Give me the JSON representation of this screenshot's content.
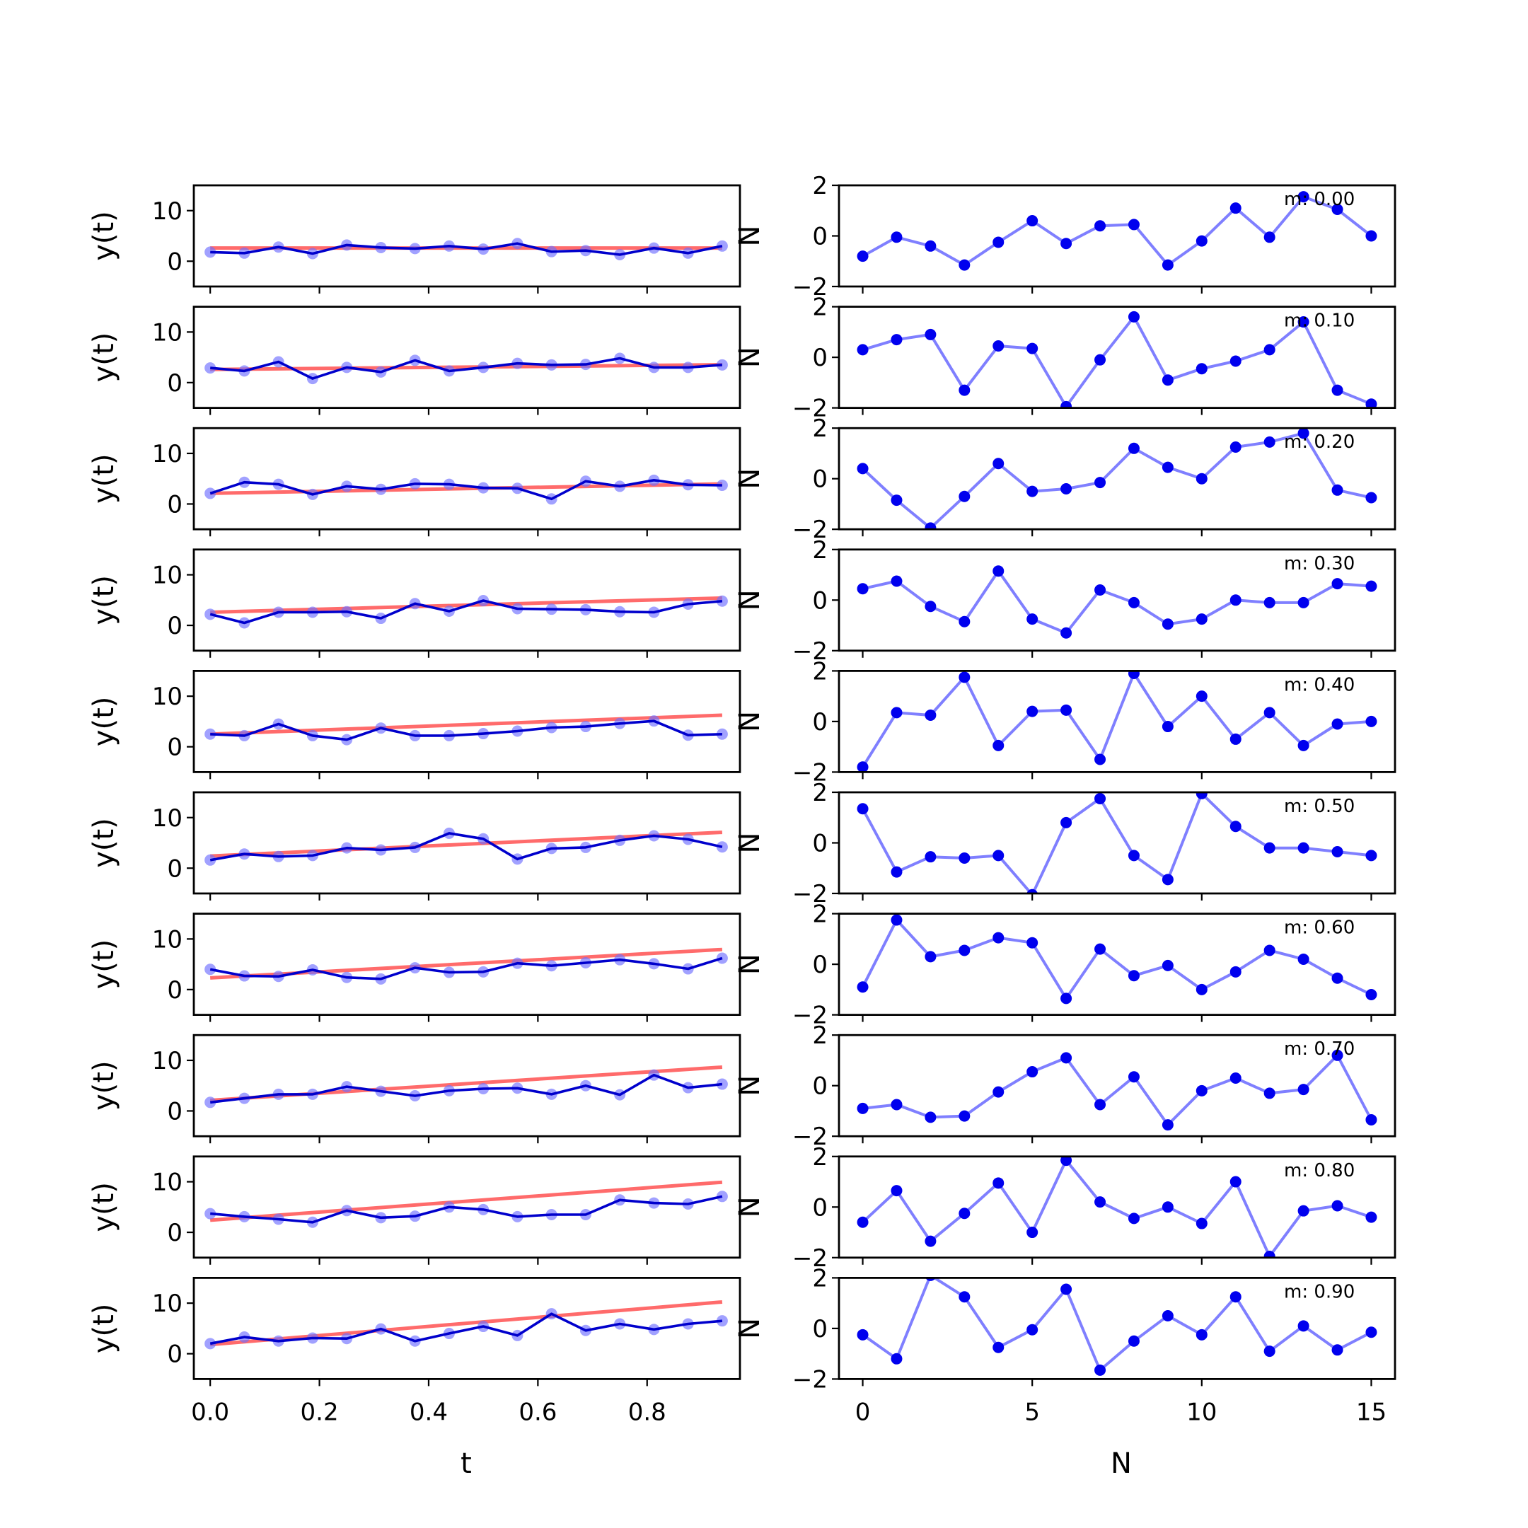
{
  "chart_data": {
    "type": "line",
    "n": [
      0,
      1,
      2,
      3,
      4,
      5,
      6,
      7,
      8,
      9,
      10,
      11,
      12,
      13,
      14,
      15
    ],
    "t": [
      0.0,
      0.0625,
      0.125,
      0.1875,
      0.25,
      0.3125,
      0.375,
      0.4375,
      0.5,
      0.5625,
      0.625,
      0.6875,
      0.75,
      0.8125,
      0.875,
      0.9375
    ],
    "left_axes": {
      "xlabel": "t",
      "ylabel": "y(t)",
      "xlim": [
        -0.03,
        0.97
      ],
      "ylim": [
        -5,
        15
      ],
      "xticks": [
        0.0,
        0.2,
        0.4,
        0.6,
        0.8
      ],
      "xtick_labels": [
        "0.0",
        "0.2",
        "0.4",
        "0.6",
        "0.8"
      ],
      "yticks": [
        0,
        10
      ],
      "ytick_labels": [
        "0",
        "10"
      ],
      "side_glyph": "N"
    },
    "right_axes": {
      "xlabel": "N",
      "xlim": [
        -0.7,
        15.7
      ],
      "ylim": [
        -2,
        2
      ],
      "xticks": [
        0,
        5,
        10,
        15
      ],
      "xtick_labels": [
        "0",
        "5",
        "10",
        "15"
      ],
      "yticks": [
        2,
        0,
        -2
      ],
      "ytick_labels": [
        "2",
        "0",
        "−2"
      ]
    },
    "colors": {
      "fit_line": "#ff6b6b",
      "data_line": "#0000cc",
      "data_points": "#6f6fff",
      "noise_line": "#7f7fff",
      "noise_points": "#0000ee"
    },
    "rows": [
      {
        "annotation": "m: 0.00",
        "slope": 0.0,
        "intercept": 2.6,
        "y": [
          1.8,
          1.6,
          2.8,
          1.5,
          3.2,
          2.7,
          2.5,
          3.0,
          2.4,
          3.5,
          1.9,
          2.1,
          1.3,
          2.6,
          1.6,
          3.0
        ],
        "noise": [
          -0.8,
          -0.05,
          -0.4,
          -1.15,
          -0.25,
          0.6,
          -0.3,
          0.4,
          0.45,
          -1.15,
          -0.2,
          1.1,
          -0.05,
          1.55,
          1.05,
          0.0
        ]
      },
      {
        "annotation": "m: 0.10",
        "slope": 1.0,
        "intercept": 2.6,
        "y": [
          2.9,
          2.3,
          4.1,
          0.8,
          3.0,
          2.1,
          4.4,
          2.3,
          3.0,
          3.8,
          3.5,
          3.6,
          4.8,
          3.0,
          3.0,
          3.5
        ],
        "noise": [
          0.3,
          0.7,
          0.9,
          -1.3,
          0.45,
          0.35,
          -1.95,
          -0.1,
          1.6,
          -0.9,
          -0.45,
          -0.15,
          0.3,
          1.4,
          -1.3,
          -1.85
        ]
      },
      {
        "annotation": "m: 0.20",
        "slope": 2.0,
        "intercept": 2.1,
        "y": [
          2.1,
          4.3,
          3.9,
          1.9,
          3.5,
          2.9,
          4.0,
          3.9,
          3.2,
          3.1,
          1.0,
          4.5,
          3.5,
          4.7,
          3.8,
          3.7
        ],
        "noise": [
          0.4,
          -0.85,
          -1.95,
          -0.7,
          0.6,
          -0.5,
          -0.4,
          -0.15,
          1.2,
          0.45,
          0.0,
          1.25,
          1.45,
          1.8,
          -0.45,
          -0.75
        ]
      },
      {
        "annotation": "m: 0.30",
        "slope": 3.0,
        "intercept": 2.6,
        "y": [
          2.2,
          0.5,
          2.6,
          2.6,
          2.7,
          1.4,
          4.3,
          2.8,
          4.9,
          3.3,
          3.2,
          3.1,
          2.7,
          2.6,
          4.2,
          4.8
        ],
        "noise": [
          0.45,
          0.75,
          -0.25,
          -0.85,
          1.15,
          -0.75,
          -1.3,
          0.4,
          -0.1,
          -0.95,
          -0.75,
          0.0,
          -0.1,
          -0.1,
          0.65,
          0.55
        ]
      },
      {
        "annotation": "m: 0.40",
        "slope": 4.0,
        "intercept": 2.5,
        "y": [
          2.5,
          2.2,
          4.5,
          2.2,
          1.4,
          3.7,
          2.2,
          2.2,
          2.6,
          3.1,
          3.8,
          4.0,
          4.6,
          5.1,
          2.3,
          2.5
        ],
        "noise": [
          -1.8,
          0.35,
          0.25,
          1.75,
          -0.95,
          0.4,
          0.45,
          -1.5,
          1.9,
          -0.2,
          1.0,
          -0.7,
          0.35,
          -0.95,
          -0.1,
          0.0
        ]
      },
      {
        "annotation": "m: 0.50",
        "slope": 5.0,
        "intercept": 2.4,
        "y": [
          1.6,
          2.8,
          2.3,
          2.5,
          4.0,
          3.6,
          4.1,
          6.9,
          5.8,
          1.8,
          3.9,
          4.1,
          5.5,
          6.4,
          5.7,
          4.2
        ],
        "noise": [
          1.35,
          -1.15,
          -0.55,
          -0.6,
          -0.5,
          -2.05,
          0.8,
          1.75,
          -0.5,
          -1.45,
          1.95,
          0.65,
          -0.2,
          -0.2,
          -0.35,
          -0.5
        ]
      },
      {
        "annotation": "m: 0.60",
        "slope": 6.0,
        "intercept": 2.3,
        "y": [
          4.0,
          2.7,
          2.6,
          3.9,
          2.4,
          2.1,
          4.3,
          3.4,
          3.5,
          5.2,
          4.7,
          5.3,
          5.9,
          5.1,
          4.1,
          6.2
        ],
        "noise": [
          -0.9,
          1.75,
          0.3,
          0.55,
          1.05,
          0.85,
          -1.35,
          0.6,
          -0.45,
          -0.05,
          -1.0,
          -0.3,
          0.55,
          0.2,
          -0.55,
          -1.2
        ]
      },
      {
        "annotation": "m: 0.70",
        "slope": 7.0,
        "intercept": 2.1,
        "y": [
          1.7,
          2.5,
          3.3,
          3.3,
          4.8,
          3.9,
          3.0,
          4.0,
          4.4,
          4.5,
          3.3,
          5.0,
          3.2,
          7.1,
          4.6,
          5.3
        ],
        "noise": [
          -0.9,
          -0.75,
          -1.25,
          -1.2,
          -0.25,
          0.55,
          1.1,
          -0.75,
          0.35,
          -1.55,
          -0.2,
          0.3,
          -0.3,
          -0.15,
          1.2,
          -1.35
        ]
      },
      {
        "annotation": "m: 0.80",
        "slope": 8.0,
        "intercept": 2.4,
        "y": [
          3.7,
          3.1,
          2.6,
          2.0,
          4.3,
          2.9,
          3.2,
          5.0,
          4.5,
          3.1,
          3.5,
          3.5,
          6.4,
          5.8,
          5.6,
          7.1
        ],
        "noise": [
          -0.6,
          0.65,
          -1.35,
          -0.25,
          0.95,
          -1.0,
          1.85,
          0.2,
          -0.45,
          0.0,
          -0.65,
          1.0,
          -1.95,
          -0.15,
          0.05,
          -0.4
        ]
      },
      {
        "annotation": "m: 0.90",
        "slope": 9.0,
        "intercept": 1.8,
        "y": [
          2.0,
          3.3,
          2.5,
          3.1,
          3.0,
          4.9,
          2.5,
          4.0,
          5.4,
          3.6,
          7.9,
          4.6,
          5.9,
          4.8,
          5.9,
          6.5
        ],
        "noise": [
          -0.25,
          -1.2,
          2.1,
          1.25,
          -0.75,
          -0.05,
          1.55,
          -1.65,
          -0.5,
          0.5,
          -0.25,
          1.25,
          -0.9,
          0.1,
          -0.85,
          -0.15
        ]
      }
    ]
  }
}
